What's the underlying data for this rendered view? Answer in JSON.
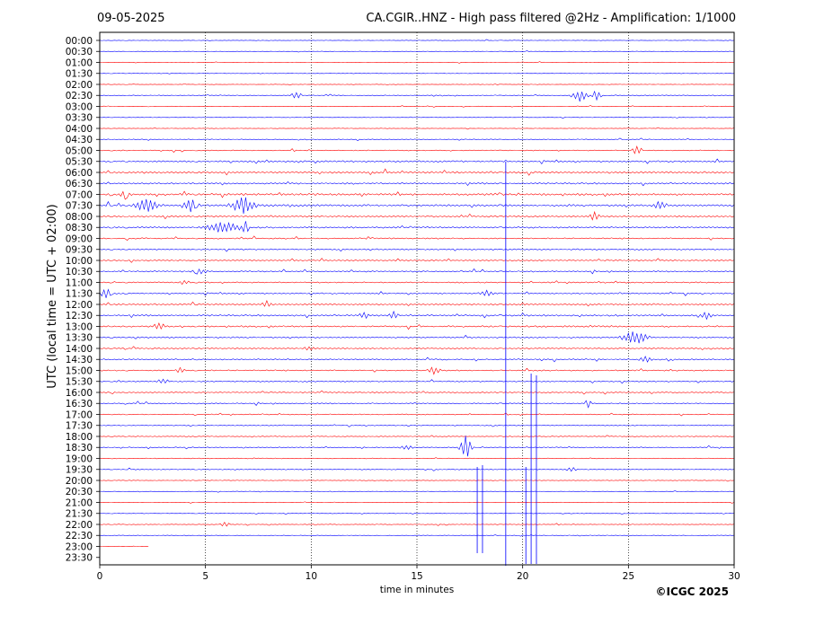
{
  "header": {
    "date": "09-05-2025",
    "title": "CA.CGIR..HNZ - High pass filtered @2Hz - Amplification: 1/1000"
  },
  "footer": {
    "copyright": "©ICGC 2025"
  },
  "colors": {
    "red": "#ff0000",
    "blue": "#0000ff",
    "axis": "#000000"
  },
  "chart_data": {
    "type": "line",
    "subtype": "helicorder",
    "xlabel": "time in minutes",
    "ylabel": "UTC (local time = UTC + 02:00)",
    "xlim": [
      0,
      30
    ],
    "x_ticks": [
      0,
      5,
      10,
      15,
      20,
      25,
      30
    ],
    "vertical_gridlines_at": [
      5,
      10,
      15,
      20,
      25
    ],
    "grid": "dotted vertical lines",
    "row_labels": [
      "00:00",
      "00:30",
      "01:00",
      "01:30",
      "02:00",
      "02:30",
      "03:00",
      "03:30",
      "04:00",
      "04:30",
      "05:00",
      "05:30",
      "06:00",
      "06:30",
      "07:00",
      "07:30",
      "08:00",
      "08:30",
      "09:00",
      "09:30",
      "10:00",
      "10:30",
      "11:00",
      "11:30",
      "12:00",
      "12:30",
      "13:00",
      "13:30",
      "14:00",
      "14:30",
      "15:00",
      "15:30",
      "16:00",
      "16:30",
      "17:00",
      "17:30",
      "18:00",
      "18:30",
      "19:00",
      "19:30",
      "20:00",
      "20:30",
      "21:00",
      "21:30",
      "22:00",
      "22:30",
      "23:00",
      "23:30"
    ],
    "row_colors": [
      "blue",
      "blue",
      "red",
      "blue",
      "red",
      "blue",
      "red",
      "blue",
      "red",
      "blue",
      "red",
      "blue",
      "red",
      "blue",
      "red",
      "blue",
      "red",
      "blue",
      "red",
      "blue",
      "red",
      "blue",
      "red",
      "blue",
      "red",
      "blue",
      "red",
      "blue",
      "red",
      "blue",
      "red",
      "blue",
      "red",
      "blue",
      "red",
      "blue",
      "red",
      "blue",
      "red",
      "blue",
      "red",
      "blue",
      "red",
      "blue",
      "red",
      "blue",
      "red",
      "blue"
    ],
    "noise_level": [
      0.3,
      0.3,
      0.3,
      0.3,
      0.3,
      0.5,
      0.3,
      0.3,
      0.3,
      0.5,
      0.6,
      1.0,
      1.2,
      1.0,
      1.3,
      1.3,
      1.0,
      1.0,
      0.8,
      0.8,
      0.8,
      0.8,
      0.8,
      0.8,
      1.0,
      1.0,
      1.0,
      0.9,
      0.8,
      0.8,
      0.8,
      0.7,
      0.7,
      0.7,
      0.6,
      0.5,
      0.5,
      0.6,
      0.5,
      0.6,
      0.4,
      0.3,
      0.3,
      0.3,
      0.4,
      0.4,
      0.3,
      0.0
    ],
    "row_end_minute": [
      30,
      30,
      30,
      30,
      30,
      30,
      30,
      30,
      30,
      30,
      30,
      30,
      30,
      30,
      30,
      30,
      30,
      30,
      30,
      30,
      30,
      30,
      30,
      30,
      30,
      30,
      30,
      30,
      30,
      30,
      30,
      30,
      30,
      30,
      30,
      30,
      30,
      30,
      30,
      30,
      30,
      30,
      30,
      30,
      30,
      30,
      2.3,
      0
    ],
    "events": [
      {
        "row": 5,
        "minute": 9.3,
        "amp": 5,
        "dur": 0.3
      },
      {
        "row": 5,
        "minute": 22.7,
        "amp": 7,
        "dur": 0.5
      },
      {
        "row": 5,
        "minute": 23.5,
        "amp": 5,
        "dur": 0.3
      },
      {
        "row": 10,
        "minute": 25.4,
        "amp": 7,
        "dur": 0.3
      },
      {
        "row": 14,
        "minute": 1.2,
        "amp": 5,
        "dur": 0.3
      },
      {
        "row": 15,
        "minute": 2.2,
        "amp": 7,
        "dur": 0.8
      },
      {
        "row": 15,
        "minute": 4.3,
        "amp": 7,
        "dur": 0.5
      },
      {
        "row": 15,
        "minute": 6.8,
        "amp": 9,
        "dur": 0.8
      },
      {
        "row": 15,
        "minute": 26.5,
        "amp": 5,
        "dur": 0.4
      },
      {
        "row": 16,
        "minute": 23.4,
        "amp": 5,
        "dur": 0.3
      },
      {
        "row": 17,
        "minute": 5.8,
        "amp": 6,
        "dur": 1.2
      },
      {
        "row": 17,
        "minute": 6.9,
        "amp": 7,
        "dur": 0.2
      },
      {
        "row": 21,
        "minute": 4.7,
        "amp": 3,
        "dur": 0.5
      },
      {
        "row": 22,
        "minute": 4.0,
        "amp": 3,
        "dur": 0.3
      },
      {
        "row": 23,
        "minute": 0.3,
        "amp": 5,
        "dur": 0.4
      },
      {
        "row": 23,
        "minute": 18.3,
        "amp": 3,
        "dur": 0.5
      },
      {
        "row": 24,
        "minute": 7.9,
        "amp": 5,
        "dur": 0.3
      },
      {
        "row": 25,
        "minute": 12.5,
        "amp": 4,
        "dur": 0.3
      },
      {
        "row": 25,
        "minute": 13.9,
        "amp": 4,
        "dur": 0.3
      },
      {
        "row": 25,
        "minute": 28.7,
        "amp": 6,
        "dur": 0.3
      },
      {
        "row": 26,
        "minute": 2.8,
        "amp": 5,
        "dur": 0.3
      },
      {
        "row": 27,
        "minute": 25.3,
        "amp": 8,
        "dur": 0.8
      },
      {
        "row": 28,
        "minute": 9.9,
        "amp": 3,
        "dur": 0.3
      },
      {
        "row": 29,
        "minute": 25.8,
        "amp": 4,
        "dur": 0.4
      },
      {
        "row": 30,
        "minute": 3.8,
        "amp": 4,
        "dur": 0.3
      },
      {
        "row": 30,
        "minute": 15.8,
        "amp": 4,
        "dur": 0.4
      },
      {
        "row": 31,
        "minute": 3.0,
        "amp": 4,
        "dur": 0.3
      },
      {
        "row": 33,
        "minute": 23.1,
        "amp": 8,
        "dur": 0.2
      },
      {
        "row": 37,
        "minute": 17.3,
        "amp": 13,
        "dur": 0.4
      },
      {
        "row": 37,
        "minute": 14.5,
        "amp": 3,
        "dur": 0.4
      },
      {
        "row": 39,
        "minute": 22.3,
        "amp": 3,
        "dur": 0.3
      },
      {
        "row": 44,
        "minute": 5.9,
        "amp": 3,
        "dur": 0.3
      }
    ],
    "spikes": [
      {
        "minute": 17.85,
        "top": 520,
        "bottom": 616
      },
      {
        "minute": 18.1,
        "top": 518,
        "bottom": 616
      },
      {
        "minute": 19.2,
        "top": 180,
        "bottom": 630
      },
      {
        "minute": 20.15,
        "top": 520,
        "bottom": 628
      },
      {
        "minute": 20.4,
        "top": 416,
        "bottom": 628
      },
      {
        "minute": 20.65,
        "top": 418,
        "bottom": 628
      }
    ]
  }
}
